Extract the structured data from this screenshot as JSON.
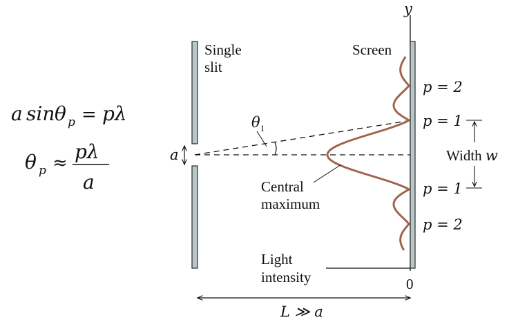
{
  "equations": {
    "eq1": {
      "a": "a",
      "sin": "sin",
      "theta": "θ",
      "sub_p": "p",
      "eq": "=",
      "rhs": "pλ"
    },
    "eq2": {
      "theta": "θ",
      "sub_p": "p",
      "approx": "≈",
      "num": "pλ",
      "den": "a"
    }
  },
  "labels": {
    "single_slit": [
      "Single",
      "slit"
    ],
    "screen": "Screen",
    "y_axis": "y",
    "theta": "θ",
    "theta_sub": "1",
    "slit_width": "a",
    "central_max": [
      "Central",
      "maximum"
    ],
    "light_intensity": [
      "Light",
      "intensity"
    ],
    "zero": "0",
    "distance": "L ≫ a",
    "width_prefix": "Width ",
    "width_var": "w",
    "order_labels": [
      "p = 2",
      "p = 1",
      "p = 1",
      "p = 2"
    ]
  },
  "colors": {
    "intensity_curve": "#a0644c",
    "slit_fill": "#b8c6c8",
    "slit_stroke": "#2a2a2a",
    "line": "#111111"
  }
}
